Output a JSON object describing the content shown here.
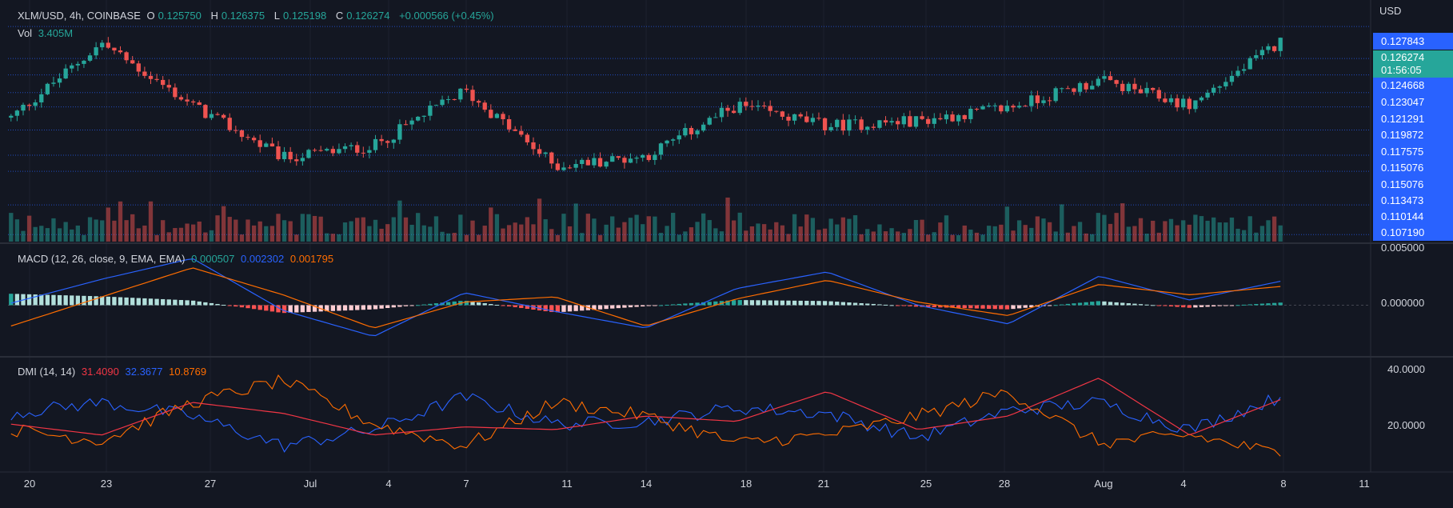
{
  "header": {
    "symbol": "XLM/USD, 4h, COINBASE",
    "o_label": "O",
    "o_value": "0.125750",
    "h_label": "H",
    "h_value": "0.126375",
    "l_label": "L",
    "l_value": "0.125198",
    "c_label": "C",
    "c_value": "0.126274",
    "change": "+0.000566 (+0.45%)",
    "vol_label": "Vol",
    "vol_value": "3.405M"
  },
  "price_axis": {
    "currency": "USD",
    "levels": [
      "0.127843",
      "0.124668",
      "0.123047",
      "0.121291",
      "0.119872",
      "0.117575",
      "0.115076",
      "0.115076",
      "0.113473",
      "0.110144",
      "0.107190"
    ],
    "current_price": "0.126274",
    "countdown": "01:56:05"
  },
  "macd": {
    "label": "MACD (12, 26, close, 9, EMA, EMA)",
    "hist_value": "0.000507",
    "macd_value": "0.002302",
    "signal_value": "0.001795",
    "axis_labels": [
      "0.005000",
      "0.000000"
    ]
  },
  "dmi": {
    "label": "DMI (14, 14)",
    "adx_value": "31.4090",
    "plus_di_value": "32.3677",
    "minus_di_value": "10.8769",
    "axis_labels": [
      "40.0000",
      "20.0000"
    ]
  },
  "time_axis": [
    "20",
    "23",
    "27",
    "Jul",
    "4",
    "7",
    "11",
    "14",
    "18",
    "21",
    "25",
    "28",
    "Aug",
    "4",
    "8",
    "11"
  ],
  "colors": {
    "up": "#26a69a",
    "down": "#ef5350",
    "macd_line": "#2962ff",
    "signal_line": "#ff6d00",
    "adx": "#f23645",
    "plus_di": "#2962ff",
    "minus_di": "#ff6d00",
    "accent_blue": "#2962ff",
    "current_green": "#26a69a"
  },
  "chart_data": [
    {
      "type": "candlestick",
      "title": "XLM/USD, 4h, COINBASE",
      "x": [
        "20",
        "23",
        "27",
        "Jul",
        "4",
        "7",
        "11",
        "14",
        "18",
        "21",
        "25",
        "28",
        "Aug",
        "4",
        "8"
      ],
      "close_trend": [
        0.1188,
        0.1262,
        0.12,
        0.1148,
        0.116,
        0.1215,
        0.114,
        0.115,
        0.12,
        0.118,
        0.1185,
        0.1198,
        0.1225,
        0.12,
        0.1263
      ],
      "ylim": [
        0.1065,
        0.13
      ],
      "price_lines": [
        0.127843,
        0.124668,
        0.123047,
        0.121291,
        0.119872,
        0.117575,
        0.115076,
        0.113473,
        0.110144,
        0.10719
      ]
    },
    {
      "type": "line",
      "title": "MACD (12, 26, close, 9, EMA, EMA)",
      "x": [
        "20",
        "23",
        "27",
        "Jul",
        "4",
        "7",
        "11",
        "14",
        "18",
        "21",
        "25",
        "28",
        "Aug",
        "4",
        "8"
      ],
      "series": [
        {
          "name": "MACD",
          "values": [
            0.0002,
            0.0025,
            0.0045,
            -0.0005,
            -0.003,
            0.0012,
            -0.0006,
            -0.0022,
            0.0016,
            0.0032,
            0.0,
            -0.0018,
            0.0028,
            0.0005,
            0.0023
          ]
        },
        {
          "name": "Signal",
          "values": [
            -0.002,
            0.0008,
            0.0036,
            0.001,
            -0.0022,
            0.0003,
            0.0008,
            -0.002,
            0.0006,
            0.0024,
            0.0003,
            -0.001,
            0.002,
            0.001,
            0.0018
          ]
        }
      ],
      "ylim": [
        -0.0045,
        0.0055
      ]
    },
    {
      "type": "line",
      "title": "DMI (14, 14)",
      "x": [
        "20",
        "23",
        "27",
        "Jul",
        "4",
        "7",
        "11",
        "14",
        "18",
        "21",
        "25",
        "28",
        "Aug",
        "4",
        "8"
      ],
      "series": [
        {
          "name": "ADX",
          "values": [
            22,
            18,
            30,
            26,
            18,
            21,
            20,
            25,
            23,
            34,
            20,
            25,
            39,
            18,
            31
          ]
        },
        {
          "name": "+DI",
          "values": [
            26,
            30,
            25,
            14,
            20,
            32,
            22,
            23,
            28,
            26,
            17,
            27,
            30,
            20,
            32
          ]
        },
        {
          "name": "-DI",
          "values": [
            20,
            16,
            30,
            38,
            22,
            14,
            30,
            25,
            15,
            18,
            25,
            34,
            15,
            18,
            11
          ]
        }
      ],
      "ylim": [
        5,
        45
      ]
    }
  ]
}
